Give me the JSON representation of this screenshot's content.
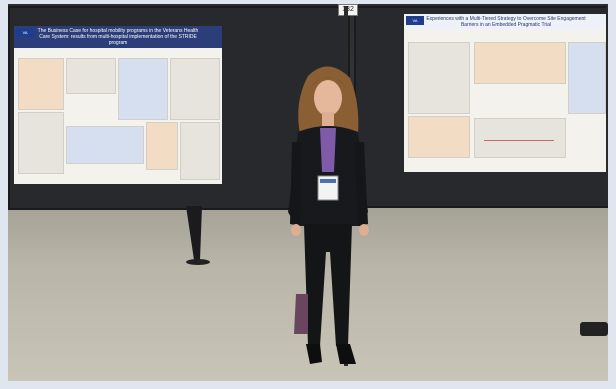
{
  "scene": {
    "board_number": "132",
    "left_poster": {
      "title": "The Business Case for hospital mobility programs in the Veterans Health Care System: results from multi-hospital implementation of the STRIDE program"
    },
    "right_poster": {
      "title": "Experiences with a Multi-Tiered Strategy to Overcome Site Engagement Barriers in an Embedded Pragmatic Trial"
    }
  },
  "colors": {
    "poster_banner": "#2c3e7a",
    "board": "#27292c",
    "floor": "#b9b5a8"
  }
}
